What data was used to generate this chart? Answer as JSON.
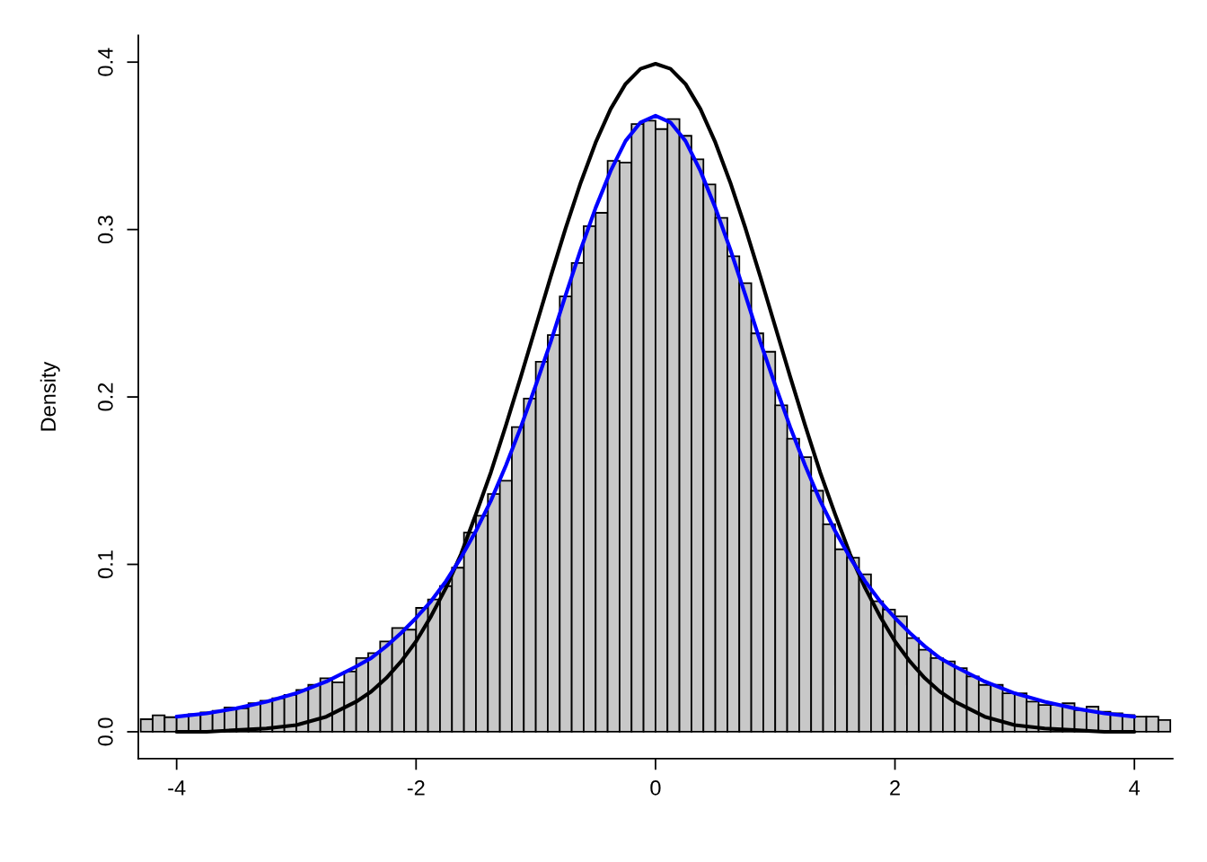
{
  "chart_data": {
    "type": "histogram",
    "ylabel": "Density",
    "color": "#c8c8c8",
    "bins": [
      -4.3,
      -4.2,
      -4.1,
      -4.0,
      -3.9,
      -3.8,
      -3.7,
      -3.6,
      -3.5,
      -3.4,
      -3.3,
      -3.2,
      -3.1,
      -3.0,
      -2.9,
      -2.8,
      -2.7,
      -2.6,
      -2.5,
      -2.4,
      -2.3,
      -2.2,
      -2.1,
      -2.0,
      -1.9,
      -1.8,
      -1.7,
      -1.6,
      -1.5,
      -1.4,
      -1.3,
      -1.2,
      -1.1,
      -1.0,
      -0.9,
      -0.8,
      -0.7,
      -0.6,
      -0.5,
      -0.4,
      -0.3,
      -0.2,
      -0.1,
      0.0,
      0.1,
      0.2,
      0.3,
      0.4,
      0.5,
      0.6,
      0.7,
      0.8,
      0.9,
      1.0,
      1.1,
      1.2,
      1.3,
      1.4,
      1.5,
      1.6,
      1.7,
      1.8,
      1.9,
      2.0,
      2.1,
      2.2,
      2.3,
      2.4,
      2.5,
      2.6,
      2.7,
      2.8,
      2.9,
      3.0,
      3.1,
      3.2,
      3.3,
      3.4,
      3.5,
      3.6,
      3.7,
      3.8,
      3.9,
      4.0,
      4.1,
      4.2,
      4.3
    ],
    "values": [
      0.0075,
      0.0098,
      0.0087,
      0.0095,
      0.0105,
      0.0116,
      0.0125,
      0.0145,
      0.014,
      0.017,
      0.0185,
      0.02,
      0.022,
      0.025,
      0.028,
      0.032,
      0.0295,
      0.036,
      0.044,
      0.047,
      0.054,
      0.062,
      0.061,
      0.074,
      0.079,
      0.087,
      0.098,
      0.119,
      0.129,
      0.142,
      0.15,
      0.182,
      0.199,
      0.221,
      0.237,
      0.26,
      0.28,
      0.302,
      0.31,
      0.341,
      0.34,
      0.363,
      0.365,
      0.36,
      0.366,
      0.356,
      0.342,
      0.327,
      0.307,
      0.284,
      0.268,
      0.238,
      0.227,
      0.195,
      0.175,
      0.164,
      0.144,
      0.124,
      0.109,
      0.104,
      0.094,
      0.078,
      0.073,
      0.069,
      0.056,
      0.049,
      0.044,
      0.042,
      0.038,
      0.033,
      0.028,
      0.028,
      0.023,
      0.023,
      0.018,
      0.016,
      0.016,
      0.017,
      0.013,
      0.015,
      0.012,
      0.011,
      0.01,
      0.009,
      0.009,
      0.007
    ],
    "series": [
      {
        "type": "line",
        "color": "#000000",
        "x": [
          -4,
          -3.75,
          -3.5,
          -3.25,
          -3,
          -2.75,
          -2.5,
          -2.375,
          -2.25,
          -2.125,
          -2,
          -1.875,
          -1.75,
          -1.625,
          -1.5,
          -1.375,
          -1.25,
          -1.125,
          -1,
          -0.875,
          -0.75,
          -0.625,
          -0.5,
          -0.375,
          -0.25,
          -0.125,
          0,
          0.125,
          0.25,
          0.375,
          0.5,
          0.625,
          0.75,
          0.875,
          1,
          1.125,
          1.25,
          1.375,
          1.5,
          1.625,
          1.75,
          1.875,
          2,
          2.125,
          2.25,
          2.375,
          2.5,
          2.75,
          3,
          3.25,
          3.5,
          3.75,
          4
        ],
        "values": [
          0.0,
          0.0,
          0.001,
          0.002,
          0.004,
          0.009,
          0.018,
          0.024,
          0.032,
          0.042,
          0.054,
          0.069,
          0.086,
          0.106,
          0.13,
          0.155,
          0.183,
          0.212,
          0.242,
          0.272,
          0.301,
          0.328,
          0.352,
          0.372,
          0.387,
          0.396,
          0.399,
          0.396,
          0.387,
          0.372,
          0.352,
          0.328,
          0.301,
          0.272,
          0.242,
          0.212,
          0.183,
          0.155,
          0.13,
          0.106,
          0.086,
          0.069,
          0.054,
          0.042,
          0.032,
          0.024,
          0.018,
          0.009,
          0.004,
          0.002,
          0.001,
          0.0,
          0.0
        ]
      },
      {
        "type": "line",
        "color": "#0000ff",
        "x": [
          -4,
          -3.75,
          -3.5,
          -3.25,
          -3,
          -2.75,
          -2.5,
          -2.375,
          -2.25,
          -2.125,
          -2,
          -1.875,
          -1.75,
          -1.625,
          -1.5,
          -1.375,
          -1.25,
          -1.125,
          -1,
          -0.875,
          -0.75,
          -0.625,
          -0.5,
          -0.375,
          -0.25,
          -0.125,
          0,
          0.125,
          0.25,
          0.375,
          0.5,
          0.625,
          0.75,
          0.875,
          1,
          1.125,
          1.25,
          1.375,
          1.5,
          1.625,
          1.75,
          1.875,
          2,
          2.125,
          2.25,
          2.375,
          2.5,
          2.75,
          3,
          3.25,
          3.5,
          3.75,
          4
        ],
        "values": [
          0.009,
          0.011,
          0.014,
          0.018,
          0.023,
          0.03,
          0.039,
          0.044,
          0.051,
          0.059,
          0.068,
          0.078,
          0.09,
          0.104,
          0.12,
          0.138,
          0.159,
          0.182,
          0.207,
          0.233,
          0.261,
          0.288,
          0.313,
          0.335,
          0.353,
          0.364,
          0.368,
          0.364,
          0.353,
          0.335,
          0.313,
          0.288,
          0.261,
          0.233,
          0.207,
          0.182,
          0.159,
          0.138,
          0.12,
          0.104,
          0.09,
          0.078,
          0.068,
          0.059,
          0.051,
          0.044,
          0.039,
          0.03,
          0.023,
          0.018,
          0.014,
          0.011,
          0.009
        ]
      }
    ],
    "xlim": [
      -4.32,
      4.32
    ],
    "xticks": [
      -4,
      -2,
      0,
      2,
      4
    ],
    "ylim": [
      -0.016,
      0.416
    ],
    "yticks": [
      {
        "value": 0,
        "label": "0.0"
      },
      0.1,
      0.2,
      0.3,
      0.4
    ]
  }
}
